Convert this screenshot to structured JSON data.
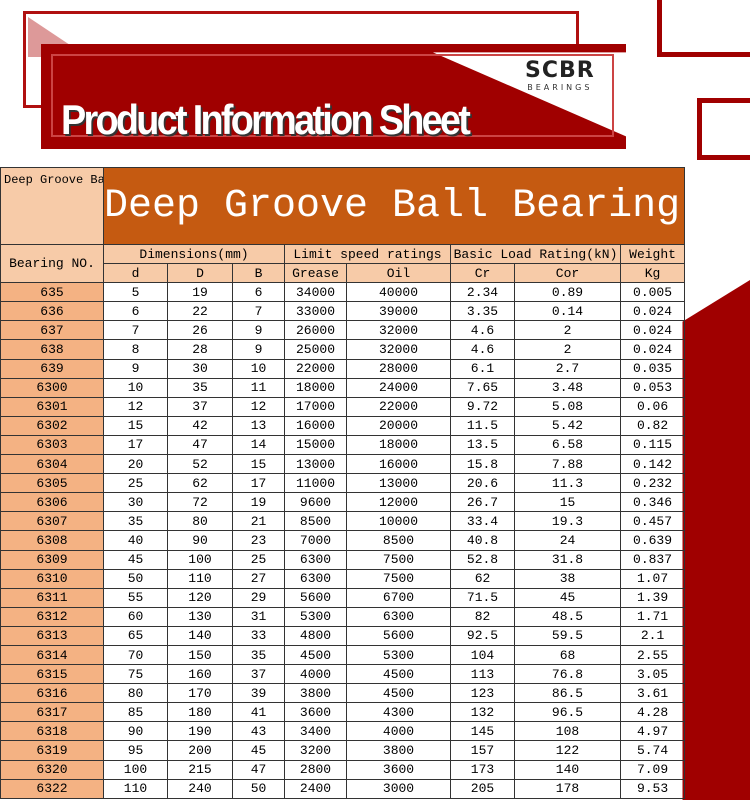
{
  "header": {
    "title": "Product Information Sheet",
    "logo_text": "SCBR",
    "logo_sub": "BEARINGS"
  },
  "table": {
    "corner": "Deep Groove Ball Bearings",
    "big_title": "Deep Groove Ball Bearing",
    "bearing_no": "Bearing NO.",
    "groups": [
      "Dimensions(mm)",
      "Limit speed ratings",
      "Basic Load Rating(kN)",
      "Weight"
    ],
    "subheaders": [
      "d",
      "D",
      "B",
      "Grease",
      "Oil",
      "Cr",
      "Cor",
      "Kg"
    ],
    "rows": [
      [
        "635",
        "5",
        "19",
        "6",
        "34000",
        "40000",
        "2.34",
        "0.89",
        "0.005"
      ],
      [
        "636",
        "6",
        "22",
        "7",
        "33000",
        "39000",
        "3.35",
        "0.14",
        "0.024"
      ],
      [
        "637",
        "7",
        "26",
        "9",
        "26000",
        "32000",
        "4.6",
        "2",
        "0.024"
      ],
      [
        "638",
        "8",
        "28",
        "9",
        "25000",
        "32000",
        "4.6",
        "2",
        "0.024"
      ],
      [
        "639",
        "9",
        "30",
        "10",
        "22000",
        "28000",
        "6.1",
        "2.7",
        "0.035"
      ],
      [
        "6300",
        "10",
        "35",
        "11",
        "18000",
        "24000",
        "7.65",
        "3.48",
        "0.053"
      ],
      [
        "6301",
        "12",
        "37",
        "12",
        "17000",
        "22000",
        "9.72",
        "5.08",
        "0.06"
      ],
      [
        "6302",
        "15",
        "42",
        "13",
        "16000",
        "20000",
        "11.5",
        "5.42",
        "0.82"
      ],
      [
        "6303",
        "17",
        "47",
        "14",
        "15000",
        "18000",
        "13.5",
        "6.58",
        "0.115"
      ],
      [
        "6304",
        "20",
        "52",
        "15",
        "13000",
        "16000",
        "15.8",
        "7.88",
        "0.142"
      ],
      [
        "6305",
        "25",
        "62",
        "17",
        "11000",
        "13000",
        "20.6",
        "11.3",
        "0.232"
      ],
      [
        "6306",
        "30",
        "72",
        "19",
        "9600",
        "12000",
        "26.7",
        "15",
        "0.346"
      ],
      [
        "6307",
        "35",
        "80",
        "21",
        "8500",
        "10000",
        "33.4",
        "19.3",
        "0.457"
      ],
      [
        "6308",
        "40",
        "90",
        "23",
        "7000",
        "8500",
        "40.8",
        "24",
        "0.639"
      ],
      [
        "6309",
        "45",
        "100",
        "25",
        "6300",
        "7500",
        "52.8",
        "31.8",
        "0.837"
      ],
      [
        "6310",
        "50",
        "110",
        "27",
        "6300",
        "7500",
        "62",
        "38",
        "1.07"
      ],
      [
        "6311",
        "55",
        "120",
        "29",
        "5600",
        "6700",
        "71.5",
        "45",
        "1.39"
      ],
      [
        "6312",
        "60",
        "130",
        "31",
        "5300",
        "6300",
        "82",
        "48.5",
        "1.71"
      ],
      [
        "6313",
        "65",
        "140",
        "33",
        "4800",
        "5600",
        "92.5",
        "59.5",
        "2.1"
      ],
      [
        "6314",
        "70",
        "150",
        "35",
        "4500",
        "5300",
        "104",
        "68",
        "2.55"
      ],
      [
        "6315",
        "75",
        "160",
        "37",
        "4000",
        "4500",
        "113",
        "76.8",
        "3.05"
      ],
      [
        "6316",
        "80",
        "170",
        "39",
        "3800",
        "4500",
        "123",
        "86.5",
        "3.61"
      ],
      [
        "6317",
        "85",
        "180",
        "41",
        "3600",
        "4300",
        "132",
        "96.5",
        "4.28"
      ],
      [
        "6318",
        "90",
        "190",
        "43",
        "3400",
        "4000",
        "145",
        "108",
        "4.97"
      ],
      [
        "6319",
        "95",
        "200",
        "45",
        "3200",
        "3800",
        "157",
        "122",
        "5.74"
      ],
      [
        "6320",
        "100",
        "215",
        "47",
        "2800",
        "3600",
        "173",
        "140",
        "7.09"
      ],
      [
        "6322",
        "110",
        "240",
        "50",
        "2400",
        "3000",
        "205",
        "178",
        "9.53"
      ]
    ]
  },
  "colors": {
    "brand_red": "#a00000",
    "title_bar": "#c55a11",
    "header_fill": "#f7cba8",
    "id_fill": "#f4b283"
  }
}
